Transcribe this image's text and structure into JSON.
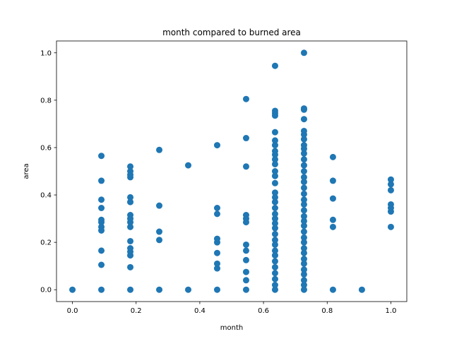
{
  "chart_data": {
    "type": "scatter",
    "title": "month compared to burned area",
    "xlabel": "month",
    "ylabel": "area",
    "xlim": [
      -0.05,
      1.05
    ],
    "ylim": [
      -0.05,
      1.05
    ],
    "xticks": [
      0.0,
      0.2,
      0.4,
      0.6,
      0.8,
      1.0
    ],
    "yticks": [
      0.0,
      0.2,
      0.4,
      0.6,
      0.8,
      1.0
    ],
    "xtick_labels": [
      "0.0",
      "0.2",
      "0.4",
      "0.6",
      "0.8",
      "1.0"
    ],
    "ytick_labels": [
      "0.0",
      "0.2",
      "0.4",
      "0.6",
      "0.8",
      "1.0"
    ],
    "grid": false,
    "series": [
      {
        "color": "#1f77b4",
        "points": [
          [
            0.0,
            0.0
          ],
          [
            0.0909,
            0.0
          ],
          [
            0.0909,
            0.105
          ],
          [
            0.0909,
            0.165
          ],
          [
            0.0909,
            0.25
          ],
          [
            0.0909,
            0.265
          ],
          [
            0.0909,
            0.285
          ],
          [
            0.0909,
            0.295
          ],
          [
            0.0909,
            0.345
          ],
          [
            0.0909,
            0.38
          ],
          [
            0.0909,
            0.46
          ],
          [
            0.0909,
            0.565
          ],
          [
            0.1818,
            0.0
          ],
          [
            0.1818,
            0.095
          ],
          [
            0.1818,
            0.145
          ],
          [
            0.1818,
            0.16
          ],
          [
            0.1818,
            0.175
          ],
          [
            0.1818,
            0.205
          ],
          [
            0.1818,
            0.265
          ],
          [
            0.1818,
            0.285
          ],
          [
            0.1818,
            0.3
          ],
          [
            0.1818,
            0.315
          ],
          [
            0.1818,
            0.37
          ],
          [
            0.1818,
            0.39
          ],
          [
            0.1818,
            0.475
          ],
          [
            0.1818,
            0.485
          ],
          [
            0.1818,
            0.5
          ],
          [
            0.1818,
            0.52
          ],
          [
            0.2727,
            0.0
          ],
          [
            0.2727,
            0.21
          ],
          [
            0.2727,
            0.245
          ],
          [
            0.2727,
            0.355
          ],
          [
            0.2727,
            0.59
          ],
          [
            0.3636,
            0.0
          ],
          [
            0.3636,
            0.525
          ],
          [
            0.4545,
            0.0
          ],
          [
            0.4545,
            0.09
          ],
          [
            0.4545,
            0.11
          ],
          [
            0.4545,
            0.155
          ],
          [
            0.4545,
            0.2
          ],
          [
            0.4545,
            0.215
          ],
          [
            0.4545,
            0.32
          ],
          [
            0.4545,
            0.345
          ],
          [
            0.4545,
            0.61
          ],
          [
            0.5454,
            0.0
          ],
          [
            0.5454,
            0.04
          ],
          [
            0.5454,
            0.075
          ],
          [
            0.5454,
            0.125
          ],
          [
            0.5454,
            0.165
          ],
          [
            0.5454,
            0.19
          ],
          [
            0.5454,
            0.285
          ],
          [
            0.5454,
            0.3
          ],
          [
            0.5454,
            0.315
          ],
          [
            0.5454,
            0.52
          ],
          [
            0.5454,
            0.64
          ],
          [
            0.5454,
            0.805
          ],
          [
            0.6363,
            0.0
          ],
          [
            0.6363,
            0.02
          ],
          [
            0.6363,
            0.045
          ],
          [
            0.6363,
            0.07
          ],
          [
            0.6363,
            0.095
          ],
          [
            0.6363,
            0.12
          ],
          [
            0.6363,
            0.145
          ],
          [
            0.6363,
            0.165
          ],
          [
            0.6363,
            0.19
          ],
          [
            0.6363,
            0.21
          ],
          [
            0.6363,
            0.235
          ],
          [
            0.6363,
            0.26
          ],
          [
            0.6363,
            0.28
          ],
          [
            0.6363,
            0.3
          ],
          [
            0.6363,
            0.32
          ],
          [
            0.6363,
            0.345
          ],
          [
            0.6363,
            0.37
          ],
          [
            0.6363,
            0.39
          ],
          [
            0.6363,
            0.41
          ],
          [
            0.6363,
            0.45
          ],
          [
            0.6363,
            0.48
          ],
          [
            0.6363,
            0.5
          ],
          [
            0.6363,
            0.53
          ],
          [
            0.6363,
            0.55
          ],
          [
            0.6363,
            0.57
          ],
          [
            0.6363,
            0.585
          ],
          [
            0.6363,
            0.61
          ],
          [
            0.6363,
            0.63
          ],
          [
            0.6363,
            0.665
          ],
          [
            0.6363,
            0.735
          ],
          [
            0.6363,
            0.745
          ],
          [
            0.6363,
            0.755
          ],
          [
            0.6363,
            0.945
          ],
          [
            0.7272,
            0.0
          ],
          [
            0.7272,
            0.02
          ],
          [
            0.7272,
            0.04
          ],
          [
            0.7272,
            0.065
          ],
          [
            0.7272,
            0.085
          ],
          [
            0.7272,
            0.11
          ],
          [
            0.7272,
            0.13
          ],
          [
            0.7272,
            0.155
          ],
          [
            0.7272,
            0.175
          ],
          [
            0.7272,
            0.2
          ],
          [
            0.7272,
            0.22
          ],
          [
            0.7272,
            0.245
          ],
          [
            0.7272,
            0.27
          ],
          [
            0.7272,
            0.29
          ],
          [
            0.7272,
            0.31
          ],
          [
            0.7272,
            0.335
          ],
          [
            0.7272,
            0.36
          ],
          [
            0.7272,
            0.38
          ],
          [
            0.7272,
            0.405
          ],
          [
            0.7272,
            0.43
          ],
          [
            0.7272,
            0.455
          ],
          [
            0.7272,
            0.475
          ],
          [
            0.7272,
            0.5
          ],
          [
            0.7272,
            0.525
          ],
          [
            0.7272,
            0.55
          ],
          [
            0.7272,
            0.575
          ],
          [
            0.7272,
            0.595
          ],
          [
            0.7272,
            0.61
          ],
          [
            0.7272,
            0.635
          ],
          [
            0.7272,
            0.655
          ],
          [
            0.7272,
            0.67
          ],
          [
            0.7272,
            0.72
          ],
          [
            0.7272,
            0.76
          ],
          [
            0.7272,
            0.765
          ],
          [
            0.7272,
            1.0
          ],
          [
            0.8181,
            0.0
          ],
          [
            0.8181,
            0.265
          ],
          [
            0.8181,
            0.295
          ],
          [
            0.8181,
            0.385
          ],
          [
            0.8181,
            0.46
          ],
          [
            0.8181,
            0.56
          ],
          [
            0.909,
            0.0
          ],
          [
            1.0,
            0.265
          ],
          [
            1.0,
            0.33
          ],
          [
            1.0,
            0.345
          ],
          [
            1.0,
            0.36
          ],
          [
            1.0,
            0.42
          ],
          [
            1.0,
            0.445
          ],
          [
            1.0,
            0.465
          ]
        ]
      }
    ]
  }
}
